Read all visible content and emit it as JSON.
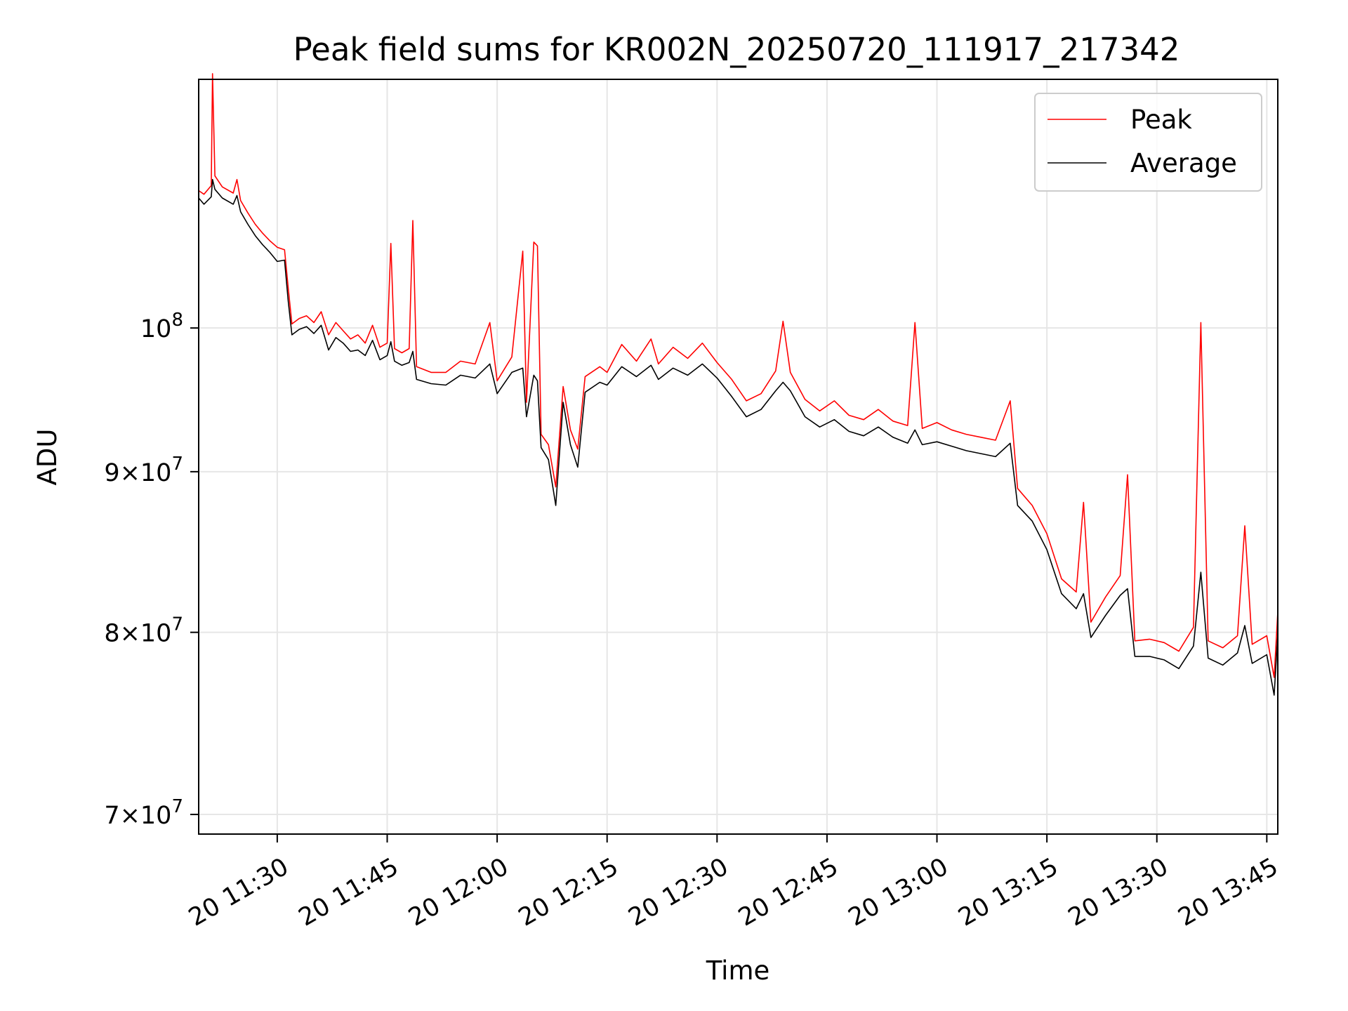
{
  "chart_data": {
    "type": "line",
    "title": "Peak field sums for KR002N_20250720_111917_217342",
    "xlabel": "Time",
    "ylabel": "ADU",
    "y_scale": "log",
    "xlim": [
      "2025-07-20 11:19:17",
      "2025-07-20 13:46:30"
    ],
    "ylim": [
      69000000,
      120000000
    ],
    "grid": true,
    "legend_position": "top-right",
    "x_ticks": [
      "2025-07-20 11:30",
      "2025-07-20 11:45",
      "2025-07-20 12:00",
      "2025-07-20 12:15",
      "2025-07-20 12:30",
      "2025-07-20 12:45",
      "2025-07-20 13:00",
      "2025-07-20 13:15",
      "2025-07-20 13:30",
      "2025-07-20 13:45"
    ],
    "x_tick_labels": [
      "20 11:30",
      "20 11:45",
      "20 12:00",
      "20 12:15",
      "20 12:30",
      "20 12:45",
      "20 13:00",
      "20 13:15",
      "20 13:30",
      "20 13:45"
    ],
    "y_ticks": [
      70000000,
      80000000,
      90000000,
      100000000
    ],
    "y_tick_labels": [
      {
        "mantissa": "7",
        "times": "×",
        "base": "10",
        "exp": "7"
      },
      {
        "mantissa": "8",
        "times": "×",
        "base": "10",
        "exp": "7"
      },
      {
        "mantissa": "9",
        "times": "×",
        "base": "10",
        "exp": "7"
      },
      {
        "mantissa": "",
        "times": "",
        "base": "10",
        "exp": "8"
      }
    ],
    "series": [
      {
        "name": "Peak",
        "color": "#ff0000",
        "points": [
          [
            "2025-07-20 11:19:17",
            110600000
          ],
          [
            "2025-07-20 11:20:00",
            110300000
          ],
          [
            "2025-07-20 11:21:00",
            111000000
          ],
          [
            "2025-07-20 11:21:10",
            120500000
          ],
          [
            "2025-07-20 11:21:30",
            111800000
          ],
          [
            "2025-07-20 11:22:30",
            110900000
          ],
          [
            "2025-07-20 11:24:00",
            110400000
          ],
          [
            "2025-07-20 11:24:30",
            111500000
          ],
          [
            "2025-07-20 11:25:00",
            109800000
          ],
          [
            "2025-07-20 11:26:00",
            108800000
          ],
          [
            "2025-07-20 11:27:00",
            107900000
          ],
          [
            "2025-07-20 11:28:00",
            107200000
          ],
          [
            "2025-07-20 11:29:00",
            106600000
          ],
          [
            "2025-07-20 11:30:00",
            106100000
          ],
          [
            "2025-07-20 11:31:00",
            105900000
          ],
          [
            "2025-07-20 11:31:30",
            103000000
          ],
          [
            "2025-07-20 11:32:00",
            100300000
          ],
          [
            "2025-07-20 11:33:00",
            100700000
          ],
          [
            "2025-07-20 11:34:00",
            100900000
          ],
          [
            "2025-07-20 11:35:00",
            100400000
          ],
          [
            "2025-07-20 11:36:00",
            101200000
          ],
          [
            "2025-07-20 11:37:00",
            99500000
          ],
          [
            "2025-07-20 11:38:00",
            100400000
          ],
          [
            "2025-07-20 11:39:00",
            99800000
          ],
          [
            "2025-07-20 11:40:00",
            99200000
          ],
          [
            "2025-07-20 11:41:00",
            99500000
          ],
          [
            "2025-07-20 11:42:00",
            98900000
          ],
          [
            "2025-07-20 11:43:00",
            100200000
          ],
          [
            "2025-07-20 11:44:00",
            98600000
          ],
          [
            "2025-07-20 11:45:00",
            98900000
          ],
          [
            "2025-07-20 11:45:30",
            106400000
          ],
          [
            "2025-07-20 11:46:00",
            98500000
          ],
          [
            "2025-07-20 11:47:00",
            98200000
          ],
          [
            "2025-07-20 11:48:00",
            98500000
          ],
          [
            "2025-07-20 11:48:30",
            108200000
          ],
          [
            "2025-07-20 11:49:00",
            97200000
          ],
          [
            "2025-07-20 11:51:00",
            96800000
          ],
          [
            "2025-07-20 11:53:00",
            96800000
          ],
          [
            "2025-07-20 11:55:00",
            97600000
          ],
          [
            "2025-07-20 11:57:00",
            97400000
          ],
          [
            "2025-07-20 11:59:00",
            100400000
          ],
          [
            "2025-07-20 12:00:00",
            96200000
          ],
          [
            "2025-07-20 12:02:00",
            97900000
          ],
          [
            "2025-07-20 12:03:30",
            105800000
          ],
          [
            "2025-07-20 12:04:00",
            94700000
          ],
          [
            "2025-07-20 12:05:00",
            106500000
          ],
          [
            "2025-07-20 12:05:30",
            106200000
          ],
          [
            "2025-07-20 12:06:00",
            92500000
          ],
          [
            "2025-07-20 12:07:00",
            91800000
          ],
          [
            "2025-07-20 12:08:00",
            89000000
          ],
          [
            "2025-07-20 12:09:00",
            95800000
          ],
          [
            "2025-07-20 12:10:00",
            92800000
          ],
          [
            "2025-07-20 12:11:00",
            91500000
          ],
          [
            "2025-07-20 12:12:00",
            96500000
          ],
          [
            "2025-07-20 12:14:00",
            97200000
          ],
          [
            "2025-07-20 12:15:00",
            96800000
          ],
          [
            "2025-07-20 12:17:00",
            98800000
          ],
          [
            "2025-07-20 12:19:00",
            97600000
          ],
          [
            "2025-07-20 12:21:00",
            99200000
          ],
          [
            "2025-07-20 12:22:00",
            97400000
          ],
          [
            "2025-07-20 12:24:00",
            98600000
          ],
          [
            "2025-07-20 12:26:00",
            97800000
          ],
          [
            "2025-07-20 12:28:00",
            98900000
          ],
          [
            "2025-07-20 12:30:00",
            97500000
          ],
          [
            "2025-07-20 12:32:00",
            96300000
          ],
          [
            "2025-07-20 12:34:00",
            94800000
          ],
          [
            "2025-07-20 12:36:00",
            95300000
          ],
          [
            "2025-07-20 12:38:00",
            96900000
          ],
          [
            "2025-07-20 12:39:00",
            100500000
          ],
          [
            "2025-07-20 12:40:00",
            96800000
          ],
          [
            "2025-07-20 12:42:00",
            94900000
          ],
          [
            "2025-07-20 12:44:00",
            94100000
          ],
          [
            "2025-07-20 12:46:00",
            94800000
          ],
          [
            "2025-07-20 12:48:00",
            93800000
          ],
          [
            "2025-07-20 12:50:00",
            93500000
          ],
          [
            "2025-07-20 12:52:00",
            94200000
          ],
          [
            "2025-07-20 12:54:00",
            93400000
          ],
          [
            "2025-07-20 12:56:00",
            93100000
          ],
          [
            "2025-07-20 12:57:00",
            100400000
          ],
          [
            "2025-07-20 12:58:00",
            92900000
          ],
          [
            "2025-07-20 13:00:00",
            93300000
          ],
          [
            "2025-07-20 13:02:00",
            92800000
          ],
          [
            "2025-07-20 13:04:00",
            92500000
          ],
          [
            "2025-07-20 13:06:00",
            92300000
          ],
          [
            "2025-07-20 13:08:00",
            92100000
          ],
          [
            "2025-07-20 13:10:00",
            94800000
          ],
          [
            "2025-07-20 13:11:00",
            88900000
          ],
          [
            "2025-07-20 13:13:00",
            87800000
          ],
          [
            "2025-07-20 13:15:00",
            86000000
          ],
          [
            "2025-07-20 13:17:00",
            83200000
          ],
          [
            "2025-07-20 13:19:00",
            82400000
          ],
          [
            "2025-07-20 13:20:00",
            88000000
          ],
          [
            "2025-07-20 13:21:00",
            80600000
          ],
          [
            "2025-07-20 13:23:00",
            82100000
          ],
          [
            "2025-07-20 13:25:00",
            83400000
          ],
          [
            "2025-07-20 13:26:00",
            89800000
          ],
          [
            "2025-07-20 13:27:00",
            79500000
          ],
          [
            "2025-07-20 13:29:00",
            79600000
          ],
          [
            "2025-07-20 13:31:00",
            79400000
          ],
          [
            "2025-07-20 13:33:00",
            78900000
          ],
          [
            "2025-07-20 13:35:00",
            80300000
          ],
          [
            "2025-07-20 13:36:00",
            100400000
          ],
          [
            "2025-07-20 13:37:00",
            79500000
          ],
          [
            "2025-07-20 13:39:00",
            79100000
          ],
          [
            "2025-07-20 13:41:00",
            79800000
          ],
          [
            "2025-07-20 13:42:00",
            86500000
          ],
          [
            "2025-07-20 13:43:00",
            79300000
          ],
          [
            "2025-07-20 13:45:00",
            79800000
          ],
          [
            "2025-07-20 13:46:00",
            77400000
          ],
          [
            "2025-07-20 13:46:30",
            81200000
          ]
        ]
      },
      {
        "name": "Average",
        "color": "#000000",
        "points": [
          [
            "2025-07-20 11:19:17",
            110000000
          ],
          [
            "2025-07-20 11:20:00",
            109500000
          ],
          [
            "2025-07-20 11:21:00",
            110100000
          ],
          [
            "2025-07-20 11:21:10",
            111500000
          ],
          [
            "2025-07-20 11:21:30",
            110700000
          ],
          [
            "2025-07-20 11:22:30",
            110000000
          ],
          [
            "2025-07-20 11:24:00",
            109500000
          ],
          [
            "2025-07-20 11:24:30",
            110200000
          ],
          [
            "2025-07-20 11:25:00",
            108900000
          ],
          [
            "2025-07-20 11:26:00",
            107900000
          ],
          [
            "2025-07-20 11:27:00",
            107000000
          ],
          [
            "2025-07-20 11:28:00",
            106300000
          ],
          [
            "2025-07-20 11:29:00",
            105700000
          ],
          [
            "2025-07-20 11:30:00",
            105000000
          ],
          [
            "2025-07-20 11:31:00",
            105100000
          ],
          [
            "2025-07-20 11:31:30",
            102000000
          ],
          [
            "2025-07-20 11:32:00",
            99500000
          ],
          [
            "2025-07-20 11:33:00",
            99900000
          ],
          [
            "2025-07-20 11:34:00",
            100100000
          ],
          [
            "2025-07-20 11:35:00",
            99600000
          ],
          [
            "2025-07-20 11:36:00",
            100200000
          ],
          [
            "2025-07-20 11:37:00",
            98400000
          ],
          [
            "2025-07-20 11:38:00",
            99300000
          ],
          [
            "2025-07-20 11:39:00",
            98900000
          ],
          [
            "2025-07-20 11:40:00",
            98300000
          ],
          [
            "2025-07-20 11:41:00",
            98400000
          ],
          [
            "2025-07-20 11:42:00",
            98000000
          ],
          [
            "2025-07-20 11:43:00",
            99100000
          ],
          [
            "2025-07-20 11:44:00",
            97700000
          ],
          [
            "2025-07-20 11:45:00",
            98000000
          ],
          [
            "2025-07-20 11:45:30",
            99000000
          ],
          [
            "2025-07-20 11:46:00",
            97600000
          ],
          [
            "2025-07-20 11:47:00",
            97300000
          ],
          [
            "2025-07-20 11:48:00",
            97500000
          ],
          [
            "2025-07-20 11:48:30",
            98300000
          ],
          [
            "2025-07-20 11:49:00",
            96300000
          ],
          [
            "2025-07-20 11:51:00",
            96000000
          ],
          [
            "2025-07-20 11:53:00",
            95900000
          ],
          [
            "2025-07-20 11:55:00",
            96600000
          ],
          [
            "2025-07-20 11:57:00",
            96400000
          ],
          [
            "2025-07-20 11:59:00",
            97400000
          ],
          [
            "2025-07-20 12:00:00",
            95300000
          ],
          [
            "2025-07-20 12:02:00",
            96800000
          ],
          [
            "2025-07-20 12:03:30",
            97100000
          ],
          [
            "2025-07-20 12:04:00",
            93700000
          ],
          [
            "2025-07-20 12:05:00",
            96600000
          ],
          [
            "2025-07-20 12:05:30",
            96200000
          ],
          [
            "2025-07-20 12:06:00",
            91600000
          ],
          [
            "2025-07-20 12:07:00",
            90800000
          ],
          [
            "2025-07-20 12:08:00",
            87800000
          ],
          [
            "2025-07-20 12:09:00",
            94700000
          ],
          [
            "2025-07-20 12:10:00",
            91800000
          ],
          [
            "2025-07-20 12:11:00",
            90300000
          ],
          [
            "2025-07-20 12:12:00",
            95400000
          ],
          [
            "2025-07-20 12:14:00",
            96100000
          ],
          [
            "2025-07-20 12:15:00",
            95900000
          ],
          [
            "2025-07-20 12:17:00",
            97200000
          ],
          [
            "2025-07-20 12:19:00",
            96500000
          ],
          [
            "2025-07-20 12:21:00",
            97300000
          ],
          [
            "2025-07-20 12:22:00",
            96300000
          ],
          [
            "2025-07-20 12:24:00",
            97100000
          ],
          [
            "2025-07-20 12:26:00",
            96600000
          ],
          [
            "2025-07-20 12:28:00",
            97400000
          ],
          [
            "2025-07-20 12:30:00",
            96400000
          ],
          [
            "2025-07-20 12:32:00",
            95100000
          ],
          [
            "2025-07-20 12:34:00",
            93700000
          ],
          [
            "2025-07-20 12:36:00",
            94200000
          ],
          [
            "2025-07-20 12:38:00",
            95500000
          ],
          [
            "2025-07-20 12:39:00",
            96100000
          ],
          [
            "2025-07-20 12:40:00",
            95500000
          ],
          [
            "2025-07-20 12:42:00",
            93700000
          ],
          [
            "2025-07-20 12:44:00",
            93000000
          ],
          [
            "2025-07-20 12:46:00",
            93500000
          ],
          [
            "2025-07-20 12:48:00",
            92700000
          ],
          [
            "2025-07-20 12:50:00",
            92400000
          ],
          [
            "2025-07-20 12:52:00",
            93000000
          ],
          [
            "2025-07-20 12:54:00",
            92300000
          ],
          [
            "2025-07-20 12:56:00",
            91900000
          ],
          [
            "2025-07-20 12:57:00",
            92800000
          ],
          [
            "2025-07-20 12:58:00",
            91800000
          ],
          [
            "2025-07-20 13:00:00",
            92000000
          ],
          [
            "2025-07-20 13:02:00",
            91700000
          ],
          [
            "2025-07-20 13:04:00",
            91400000
          ],
          [
            "2025-07-20 13:06:00",
            91200000
          ],
          [
            "2025-07-20 13:08:00",
            91000000
          ],
          [
            "2025-07-20 13:10:00",
            91900000
          ],
          [
            "2025-07-20 13:11:00",
            87800000
          ],
          [
            "2025-07-20 13:13:00",
            86800000
          ],
          [
            "2025-07-20 13:15:00",
            85000000
          ],
          [
            "2025-07-20 13:17:00",
            82300000
          ],
          [
            "2025-07-20 13:19:00",
            81400000
          ],
          [
            "2025-07-20 13:20:00",
            82300000
          ],
          [
            "2025-07-20 13:21:00",
            79700000
          ],
          [
            "2025-07-20 13:23:00",
            81000000
          ],
          [
            "2025-07-20 13:25:00",
            82200000
          ],
          [
            "2025-07-20 13:26:00",
            82600000
          ],
          [
            "2025-07-20 13:27:00",
            78600000
          ],
          [
            "2025-07-20 13:29:00",
            78600000
          ],
          [
            "2025-07-20 13:31:00",
            78400000
          ],
          [
            "2025-07-20 13:33:00",
            77900000
          ],
          [
            "2025-07-20 13:35:00",
            79200000
          ],
          [
            "2025-07-20 13:36:00",
            83600000
          ],
          [
            "2025-07-20 13:37:00",
            78500000
          ],
          [
            "2025-07-20 13:39:00",
            78100000
          ],
          [
            "2025-07-20 13:41:00",
            78800000
          ],
          [
            "2025-07-20 13:42:00",
            80400000
          ],
          [
            "2025-07-20 13:43:00",
            78200000
          ],
          [
            "2025-07-20 13:45:00",
            78700000
          ],
          [
            "2025-07-20 13:46:00",
            76400000
          ],
          [
            "2025-07-20 13:46:30",
            79900000
          ]
        ]
      }
    ]
  }
}
